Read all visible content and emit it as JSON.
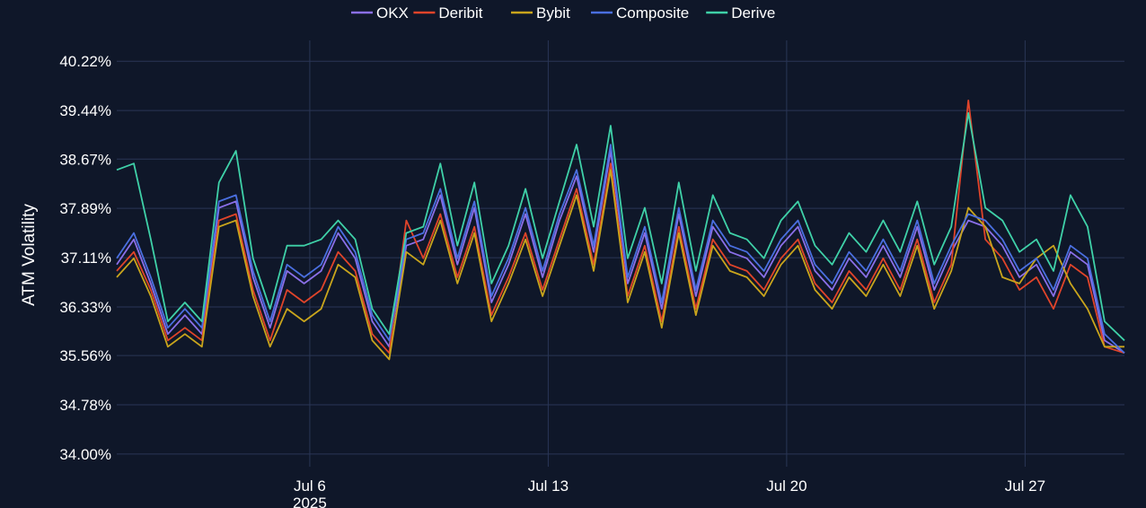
{
  "chart_data": {
    "type": "line",
    "title": "",
    "xlabel": "",
    "ylabel": "ATM Volatility",
    "x_range": [
      "2025-06-30T08:00",
      "2025-07-29T22:00"
    ],
    "ylim": [
      33.8,
      40.55
    ],
    "y_ticks": [
      34.0,
      34.78,
      35.56,
      36.33,
      37.11,
      37.89,
      38.67,
      39.44,
      40.22
    ],
    "y_tick_labels": [
      "34.00%",
      "34.78%",
      "35.56%",
      "36.33%",
      "37.11%",
      "37.89%",
      "38.67%",
      "39.44%",
      "40.22%"
    ],
    "x_ticks": [
      {
        "x": "2025-07-06",
        "label": "Jul 6",
        "sublabel": "2025"
      },
      {
        "x": "2025-07-13",
        "label": "Jul 13",
        "sublabel": ""
      },
      {
        "x": "2025-07-20",
        "label": "Jul 20",
        "sublabel": ""
      },
      {
        "x": "2025-07-27",
        "label": "Jul 27",
        "sublabel": ""
      }
    ],
    "grid": true,
    "legend": "top-center",
    "x": [
      "2025-06-30T08:00",
      "2025-06-30T20:00",
      "2025-07-01T08:00",
      "2025-07-01T20:00",
      "2025-07-02T08:00",
      "2025-07-02T20:00",
      "2025-07-03T08:00",
      "2025-07-03T20:00",
      "2025-07-04T08:00",
      "2025-07-04T20:00",
      "2025-07-05T08:00",
      "2025-07-05T20:00",
      "2025-07-06T08:00",
      "2025-07-06T20:00",
      "2025-07-07T08:00",
      "2025-07-07T20:00",
      "2025-07-08T08:00",
      "2025-07-08T20:00",
      "2025-07-09T08:00",
      "2025-07-09T20:00",
      "2025-07-10T08:00",
      "2025-07-10T20:00",
      "2025-07-11T08:00",
      "2025-07-11T20:00",
      "2025-07-12T08:00",
      "2025-07-12T20:00",
      "2025-07-13T08:00",
      "2025-07-13T20:00",
      "2025-07-14T08:00",
      "2025-07-14T20:00",
      "2025-07-15T08:00",
      "2025-07-15T20:00",
      "2025-07-16T08:00",
      "2025-07-16T20:00",
      "2025-07-17T08:00",
      "2025-07-17T20:00",
      "2025-07-18T08:00",
      "2025-07-18T20:00",
      "2025-07-19T08:00",
      "2025-07-19T20:00",
      "2025-07-20T08:00",
      "2025-07-20T20:00",
      "2025-07-21T08:00",
      "2025-07-21T20:00",
      "2025-07-22T08:00",
      "2025-07-22T20:00",
      "2025-07-23T08:00",
      "2025-07-23T20:00",
      "2025-07-24T08:00",
      "2025-07-24T20:00",
      "2025-07-25T08:00",
      "2025-07-25T20:00",
      "2025-07-26T08:00",
      "2025-07-26T20:00",
      "2025-07-27T08:00",
      "2025-07-27T20:00",
      "2025-07-28T08:00",
      "2025-07-28T20:00",
      "2025-07-29T08:00",
      "2025-07-29T22:00"
    ],
    "series": [
      {
        "name": "OKX",
        "color": "#8a6fe8",
        "values": [
          37.0,
          37.4,
          36.7,
          35.9,
          36.2,
          35.9,
          37.9,
          38.0,
          36.8,
          36.0,
          36.9,
          36.7,
          36.9,
          37.5,
          37.1,
          36.1,
          35.7,
          37.3,
          37.4,
          38.1,
          37.0,
          37.9,
          36.4,
          37.0,
          37.8,
          36.8,
          37.7,
          38.4,
          37.2,
          38.8,
          36.7,
          37.5,
          36.3,
          37.8,
          36.5,
          37.6,
          37.2,
          37.1,
          36.8,
          37.3,
          37.6,
          36.9,
          36.6,
          37.1,
          36.8,
          37.3,
          36.8,
          37.6,
          36.6,
          37.2,
          37.7,
          37.6,
          37.3,
          36.8,
          37.0,
          36.5,
          37.2,
          37.0,
          35.8,
          35.6
        ]
      },
      {
        "name": "Deribit",
        "color": "#e0442a",
        "values": [
          36.9,
          37.2,
          36.6,
          35.8,
          36.0,
          35.8,
          37.7,
          37.8,
          36.6,
          35.8,
          36.6,
          36.4,
          36.6,
          37.2,
          36.9,
          35.9,
          35.6,
          37.7,
          37.1,
          37.8,
          36.8,
          37.6,
          36.2,
          36.8,
          37.5,
          36.6,
          37.4,
          38.2,
          37.0,
          38.6,
          36.5,
          37.3,
          36.1,
          37.6,
          36.3,
          37.4,
          37.0,
          36.9,
          36.6,
          37.1,
          37.4,
          36.7,
          36.4,
          36.9,
          36.6,
          37.1,
          36.6,
          37.4,
          36.4,
          37.0,
          39.6,
          37.4,
          37.1,
          36.6,
          36.8,
          36.3,
          37.0,
          36.8,
          35.7,
          35.6
        ]
      },
      {
        "name": "Bybit",
        "color": "#c9a51c",
        "values": [
          36.8,
          37.1,
          36.5,
          35.7,
          35.9,
          35.7,
          37.6,
          37.7,
          36.5,
          35.7,
          36.3,
          36.1,
          36.3,
          37.0,
          36.8,
          35.8,
          35.5,
          37.2,
          37.0,
          37.7,
          36.7,
          37.5,
          36.1,
          36.7,
          37.4,
          36.5,
          37.3,
          38.1,
          36.9,
          38.5,
          36.4,
          37.2,
          36.0,
          37.5,
          36.2,
          37.3,
          36.9,
          36.8,
          36.5,
          37.0,
          37.3,
          36.6,
          36.3,
          36.8,
          36.5,
          37.0,
          36.5,
          37.3,
          36.3,
          36.9,
          37.9,
          37.6,
          36.8,
          36.7,
          37.1,
          37.3,
          36.7,
          36.3,
          35.7,
          35.7
        ]
      },
      {
        "name": "Composite",
        "color": "#4a6fe0",
        "values": [
          37.1,
          37.5,
          36.8,
          36.0,
          36.3,
          36.0,
          38.0,
          38.1,
          36.9,
          36.1,
          37.0,
          36.8,
          37.0,
          37.6,
          37.2,
          36.2,
          35.8,
          37.4,
          37.5,
          38.2,
          37.1,
          38.0,
          36.5,
          37.1,
          37.9,
          36.9,
          37.8,
          38.5,
          37.3,
          38.9,
          36.8,
          37.6,
          36.4,
          37.9,
          36.6,
          37.7,
          37.3,
          37.2,
          36.9,
          37.4,
          37.7,
          37.0,
          36.7,
          37.2,
          36.9,
          37.4,
          36.9,
          37.7,
          36.7,
          37.3,
          37.8,
          37.7,
          37.4,
          36.9,
          37.1,
          36.6,
          37.3,
          37.1,
          35.9,
          35.6
        ]
      },
      {
        "name": "Derive",
        "color": "#3fd1a8",
        "values": [
          38.5,
          38.6,
          37.4,
          36.1,
          36.4,
          36.1,
          38.3,
          38.8,
          37.1,
          36.3,
          37.3,
          37.3,
          37.4,
          37.7,
          37.4,
          36.3,
          35.9,
          37.5,
          37.6,
          38.6,
          37.3,
          38.3,
          36.7,
          37.3,
          38.2,
          37.1,
          38.0,
          38.9,
          37.6,
          39.2,
          37.1,
          37.9,
          36.7,
          38.3,
          36.9,
          38.1,
          37.5,
          37.4,
          37.1,
          37.7,
          38.0,
          37.3,
          37.0,
          37.5,
          37.2,
          37.7,
          37.2,
          38.0,
          37.0,
          37.6,
          39.4,
          37.9,
          37.7,
          37.2,
          37.4,
          36.9,
          38.1,
          37.6,
          36.1,
          35.8
        ]
      }
    ]
  }
}
